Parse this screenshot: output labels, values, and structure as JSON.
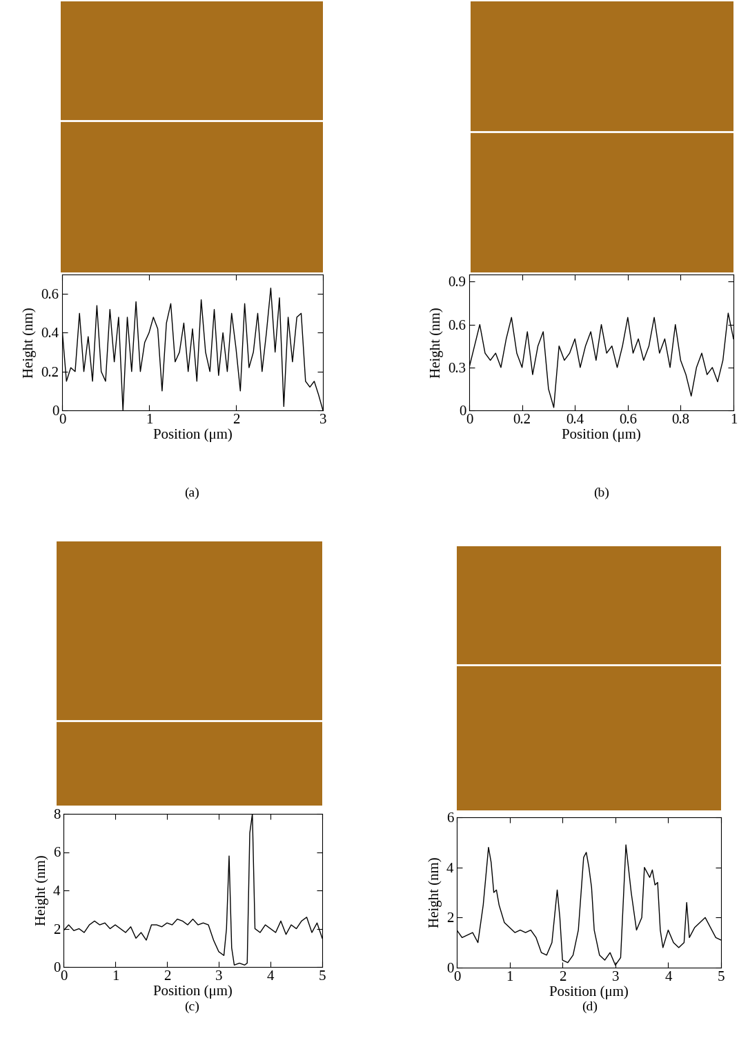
{
  "chart_data": [
    {
      "type": "line",
      "caption": "(a)",
      "x_label": "Position (μm)",
      "y_label": "Height (nm)",
      "x": [
        0,
        0.05,
        0.1,
        0.15,
        0.2,
        0.25,
        0.3,
        0.35,
        0.4,
        0.45,
        0.5,
        0.55,
        0.6,
        0.65,
        0.7,
        0.75,
        0.8,
        0.85,
        0.9,
        0.95,
        1.0,
        1.05,
        1.1,
        1.15,
        1.2,
        1.25,
        1.3,
        1.35,
        1.4,
        1.45,
        1.5,
        1.55,
        1.6,
        1.65,
        1.7,
        1.75,
        1.8,
        1.85,
        1.9,
        1.95,
        2.0,
        2.05,
        2.1,
        2.15,
        2.2,
        2.25,
        2.3,
        2.35,
        2.4,
        2.45,
        2.5,
        2.55,
        2.6,
        2.65,
        2.7,
        2.75,
        2.8,
        2.85,
        2.9,
        2.95,
        3.0
      ],
      "series": [
        {
          "color": "#000000",
          "values": [
            0.42,
            0.15,
            0.22,
            0.2,
            0.5,
            0.2,
            0.38,
            0.15,
            0.54,
            0.2,
            0.15,
            0.52,
            0.25,
            0.48,
            0.0,
            0.48,
            0.2,
            0.56,
            0.2,
            0.35,
            0.4,
            0.48,
            0.42,
            0.1,
            0.45,
            0.55,
            0.25,
            0.3,
            0.45,
            0.2,
            0.42,
            0.15,
            0.57,
            0.3,
            0.2,
            0.52,
            0.18,
            0.4,
            0.2,
            0.5,
            0.32,
            0.1,
            0.55,
            0.22,
            0.3,
            0.5,
            0.2,
            0.4,
            0.63,
            0.3,
            0.58,
            0.02,
            0.48,
            0.25,
            0.48,
            0.5,
            0.15,
            0.12,
            0.15,
            0.08,
            0.0
          ]
        }
      ],
      "xlim": [
        0,
        3
      ],
      "ylim": [
        0,
        0.7
      ],
      "xticks": [
        0,
        1,
        2,
        3
      ],
      "yticks": [
        0,
        0.2,
        0.4,
        0.6
      ]
    },
    {
      "type": "line",
      "caption": "(b)",
      "x_label": "Position (μm)",
      "y_label": "Height (nm)",
      "x": [
        0,
        0.02,
        0.04,
        0.06,
        0.08,
        0.1,
        0.12,
        0.14,
        0.16,
        0.18,
        0.2,
        0.22,
        0.24,
        0.26,
        0.28,
        0.3,
        0.32,
        0.34,
        0.36,
        0.38,
        0.4,
        0.42,
        0.44,
        0.46,
        0.48,
        0.5,
        0.52,
        0.54,
        0.56,
        0.58,
        0.6,
        0.62,
        0.64,
        0.66,
        0.68,
        0.7,
        0.72,
        0.74,
        0.76,
        0.78,
        0.8,
        0.82,
        0.84,
        0.86,
        0.88,
        0.9,
        0.92,
        0.94,
        0.96,
        0.98,
        1.0
      ],
      "series": [
        {
          "color": "#000000",
          "values": [
            0.3,
            0.45,
            0.6,
            0.4,
            0.35,
            0.4,
            0.3,
            0.5,
            0.65,
            0.4,
            0.3,
            0.55,
            0.25,
            0.45,
            0.55,
            0.15,
            0.02,
            0.45,
            0.35,
            0.4,
            0.5,
            0.3,
            0.45,
            0.55,
            0.35,
            0.6,
            0.4,
            0.45,
            0.3,
            0.45,
            0.65,
            0.4,
            0.5,
            0.35,
            0.45,
            0.65,
            0.4,
            0.5,
            0.3,
            0.6,
            0.35,
            0.25,
            0.1,
            0.3,
            0.4,
            0.25,
            0.3,
            0.2,
            0.35,
            0.68,
            0.5
          ]
        }
      ],
      "xlim": [
        0,
        1
      ],
      "ylim": [
        0,
        0.95
      ],
      "xticks": [
        0,
        0.2,
        0.4,
        0.6,
        0.8,
        1
      ],
      "yticks": [
        0,
        0.3,
        0.6,
        0.9
      ]
    },
    {
      "type": "line",
      "caption": "(c)",
      "x_label": "Position (μm)",
      "y_label": "Height (nm)",
      "x": [
        0,
        0.1,
        0.2,
        0.3,
        0.4,
        0.5,
        0.6,
        0.7,
        0.8,
        0.9,
        1.0,
        1.1,
        1.2,
        1.3,
        1.4,
        1.5,
        1.6,
        1.7,
        1.8,
        1.9,
        2.0,
        2.1,
        2.2,
        2.3,
        2.4,
        2.5,
        2.6,
        2.7,
        2.8,
        2.9,
        3.0,
        3.1,
        3.15,
        3.2,
        3.25,
        3.3,
        3.4,
        3.5,
        3.55,
        3.6,
        3.65,
        3.7,
        3.8,
        3.9,
        4.0,
        4.1,
        4.2,
        4.3,
        4.4,
        4.5,
        4.6,
        4.7,
        4.8,
        4.9,
        5.0
      ],
      "series": [
        {
          "color": "#000000",
          "values": [
            1.9,
            2.2,
            1.9,
            2.0,
            1.8,
            2.2,
            2.4,
            2.2,
            2.3,
            2.0,
            2.2,
            2.0,
            1.8,
            2.1,
            1.5,
            1.8,
            1.4,
            2.2,
            2.2,
            2.1,
            2.3,
            2.2,
            2.5,
            2.4,
            2.2,
            2.5,
            2.2,
            2.3,
            2.2,
            1.4,
            0.8,
            0.6,
            2.0,
            5.8,
            1.0,
            0.1,
            0.2,
            0.1,
            0.2,
            7.0,
            8.0,
            2.0,
            1.8,
            2.2,
            2.0,
            1.8,
            2.4,
            1.7,
            2.2,
            2.0,
            2.4,
            2.6,
            1.8,
            2.3,
            1.5
          ]
        }
      ],
      "xlim": [
        0,
        5
      ],
      "ylim": [
        0,
        8
      ],
      "xticks": [
        0,
        1,
        2,
        3,
        4,
        5
      ],
      "yticks": [
        0,
        2,
        4,
        6,
        8
      ]
    },
    {
      "type": "line",
      "caption": "(d)",
      "x_label": "Position (μm)",
      "y_label": "Height (nm)",
      "x": [
        0,
        0.1,
        0.2,
        0.3,
        0.4,
        0.5,
        0.6,
        0.65,
        0.7,
        0.75,
        0.8,
        0.9,
        1.0,
        1.1,
        1.2,
        1.3,
        1.4,
        1.5,
        1.6,
        1.7,
        1.8,
        1.9,
        1.95,
        2.0,
        2.1,
        2.2,
        2.3,
        2.4,
        2.45,
        2.5,
        2.55,
        2.6,
        2.7,
        2.8,
        2.9,
        3.0,
        3.1,
        3.2,
        3.3,
        3.4,
        3.5,
        3.55,
        3.6,
        3.65,
        3.7,
        3.75,
        3.8,
        3.85,
        3.9,
        4.0,
        4.1,
        4.2,
        4.3,
        4.35,
        4.4,
        4.5,
        4.6,
        4.7,
        4.8,
        4.9,
        5.0
      ],
      "series": [
        {
          "color": "#000000",
          "values": [
            1.5,
            1.2,
            1.3,
            1.4,
            1.0,
            2.5,
            4.8,
            4.2,
            3.0,
            3.1,
            2.5,
            1.8,
            1.6,
            1.4,
            1.5,
            1.4,
            1.5,
            1.2,
            0.6,
            0.5,
            1.0,
            3.1,
            2.0,
            0.3,
            0.2,
            0.5,
            1.5,
            4.4,
            4.6,
            4.0,
            3.2,
            1.5,
            0.5,
            0.3,
            0.6,
            0.1,
            0.4,
            4.9,
            3.0,
            1.5,
            2.0,
            4.0,
            3.8,
            3.6,
            3.9,
            3.3,
            3.4,
            1.5,
            0.8,
            1.5,
            1.0,
            0.8,
            1.0,
            2.6,
            1.2,
            1.6,
            1.8,
            2.0,
            1.6,
            1.2,
            1.1
          ]
        }
      ],
      "xlim": [
        0,
        5
      ],
      "ylim": [
        0,
        6
      ],
      "xticks": [
        0,
        1,
        2,
        3,
        4,
        5
      ],
      "yticks": [
        0,
        2,
        4,
        6
      ]
    }
  ]
}
